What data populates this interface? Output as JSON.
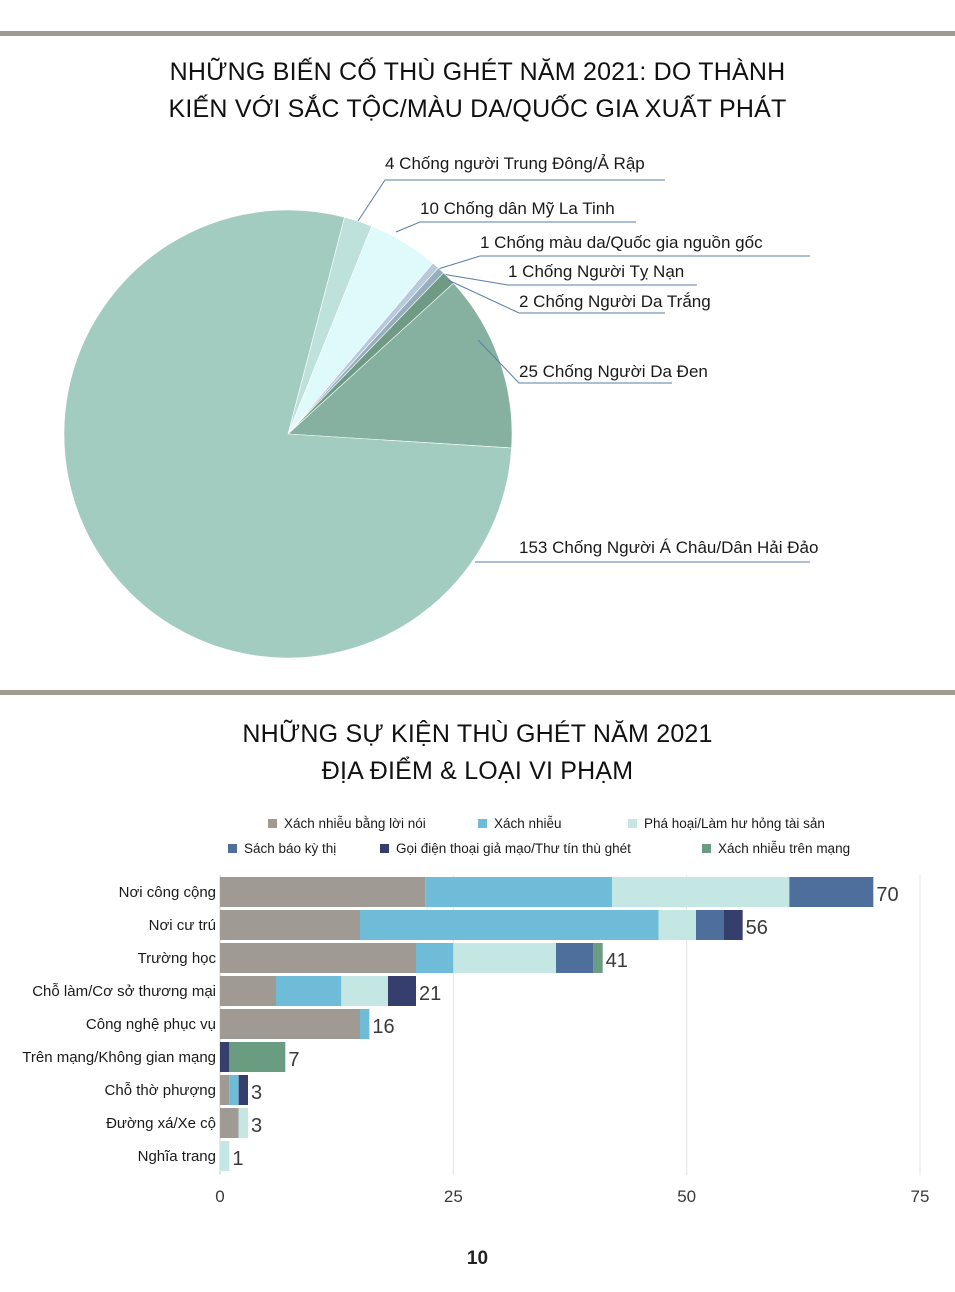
{
  "pie": {
    "title_line1": "NHỮNG BIẾN CỐ THÙ GHÉT NĂM 2021: DO THÀNH",
    "title_line2": "KIẾN VỚI SẮC TỘC/MÀU DA/QUỐC GIA XUẤT PHÁT"
  },
  "bar": {
    "title_line1": "NHỮNG SỰ KIỆN THÙ GHÉT NĂM 2021",
    "title_line2": "ĐỊA ĐIỂM & LOẠI VI PHẠM"
  },
  "page_number": "10",
  "chart_data": [
    {
      "type": "pie",
      "title": "NHỮNG BIẾN CỐ THÙ GHÉT NĂM 2021: DO THÀNH KIẾN VỚI SẮC TỘC/MÀU DA/QUỐC GIA XUẤT PHÁT",
      "slices": [
        {
          "label": "4 Chống người Trung Đông/Ả Rập",
          "name": "Chống người Trung Đông/Ả Rập",
          "value": 4,
          "color": "#bfe1dc"
        },
        {
          "label": "10 Chống dân Mỹ La Tinh",
          "name": "Chống dân Mỹ La Tinh",
          "value": 10,
          "color": "#dffafa"
        },
        {
          "label": "1 Chống màu da/Quốc gia nguồn gốc",
          "name": "Chống màu da/Quốc gia nguồn gốc",
          "value": 1,
          "color": "#b8c9dc"
        },
        {
          "label": "1 Chống Người Tỵ Nạn",
          "name": "Chống Người Tỵ Nạn",
          "value": 1,
          "color": "#97aebf"
        },
        {
          "label": "2 Chống Người Da Trắng",
          "name": "Chống Người Da Trắng",
          "value": 2,
          "color": "#6f9a86"
        },
        {
          "label": "25 Chống Người Da Đen",
          "name": "Chống Người Da Đen",
          "value": 25,
          "color": "#86b1a1"
        },
        {
          "label": "153 Chống Người Á Châu/Dân Hải Đảo",
          "name": "Chống Người Á Châu/Dân Hải Đảo",
          "value": 153,
          "color": "#a3ccc1"
        }
      ],
      "label_line_color": "#5a7ea6"
    },
    {
      "type": "bar",
      "orientation": "horizontal",
      "stacked": true,
      "title": "NHỮNG SỰ KIỆN THÙ GHÉT NĂM 2021 ĐỊA ĐIỂM & LOẠI VI PHẠM",
      "categories": [
        "Nơi công cộng",
        "Nơi cư trú",
        "Trường học",
        "Chỗ làm/Cơ sở thương mại",
        "Công nghệ phục vụ",
        "Trên mạng/Không gian mạng",
        "Chỗ thờ phượng",
        "Đường xá/Xe cộ",
        "Nghĩa trang"
      ],
      "totals": [
        "70",
        "56",
        "41",
        "21",
        "16",
        "7",
        "3",
        "3",
        "1"
      ],
      "series": [
        {
          "name": "Xách nhiễu bằng lời nói",
          "color": "#a09a95",
          "values": [
            22,
            15,
            21,
            6,
            15,
            0,
            1,
            2,
            0
          ]
        },
        {
          "name": "Xách nhiễu",
          "color": "#6fbcd8",
          "values": [
            20,
            32,
            4,
            7,
            1,
            0,
            1,
            0,
            0
          ]
        },
        {
          "name": "Phá hoại/Làm hư hỏng tài sản",
          "color": "#c5e7e4",
          "values": [
            19,
            4,
            11,
            5,
            0,
            0,
            0,
            1,
            1
          ]
        },
        {
          "name": "Sách báo kỳ thị",
          "color": "#4e6f9c",
          "values": [
            9,
            3,
            4,
            0,
            0,
            0,
            0,
            0,
            0
          ]
        },
        {
          "name": "Gọi điện thoại giả mạo/Thư tín thù ghét",
          "color": "#363e6e",
          "values": [
            0,
            2,
            0,
            3,
            0,
            1,
            1,
            0,
            0
          ]
        },
        {
          "name": "Xách nhiễu trên mạng",
          "color": "#6a9c82",
          "values": [
            0,
            0,
            1,
            0,
            0,
            6,
            0,
            0,
            0
          ]
        }
      ],
      "xlim": [
        0,
        75
      ],
      "xticks": [
        "0",
        "25",
        "50",
        "75"
      ],
      "grid": true,
      "legend_position": "top"
    }
  ]
}
